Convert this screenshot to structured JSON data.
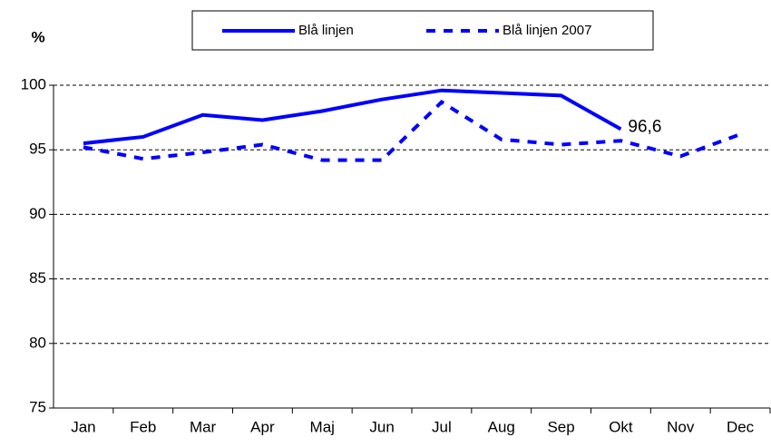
{
  "chart_data": {
    "type": "line",
    "y_label": "%",
    "categories": [
      "Jan",
      "Feb",
      "Mar",
      "Apr",
      "Maj",
      "Jun",
      "Jul",
      "Aug",
      "Sep",
      "Okt",
      "Nov",
      "Dec"
    ],
    "series": [
      {
        "name": "Blå linjen",
        "color": "#0000ff",
        "dash": false,
        "values": [
          95.5,
          96.0,
          97.7,
          97.3,
          98.0,
          98.9,
          99.6,
          99.4,
          99.2,
          96.6,
          null,
          null
        ],
        "value_labels": [
          null,
          null,
          null,
          null,
          null,
          null,
          null,
          null,
          null,
          "96,6",
          null,
          null
        ]
      },
      {
        "name": "Blå linjen 2007",
        "color": "#0000ff",
        "dash": true,
        "values": [
          95.2,
          94.3,
          94.8,
          95.4,
          94.2,
          94.2,
          98.7,
          95.8,
          95.4,
          95.7,
          94.5,
          96.2
        ]
      }
    ],
    "ylim": [
      75,
      100
    ],
    "yticks": [
      75,
      80,
      85,
      90,
      95,
      100
    ],
    "grid": true,
    "legend": "top"
  }
}
